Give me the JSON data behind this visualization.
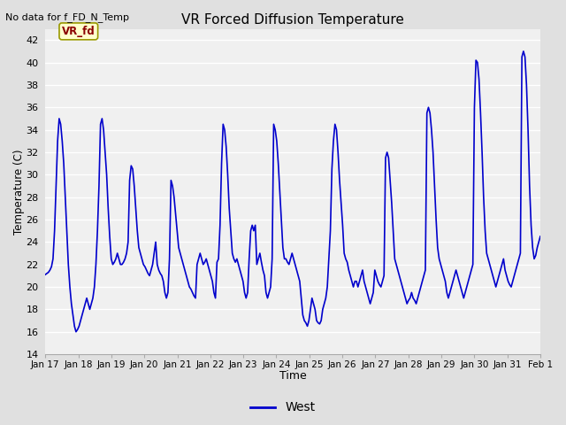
{
  "title": "VR Forced Diffusion Temperature",
  "xlabel": "Time",
  "ylabel": "Temperature (C)",
  "no_data_label": "No data for f_FD_N_Temp",
  "vr_fd_label": "VR_fd",
  "legend_label": "West",
  "line_color": "#0000cc",
  "ylim": [
    14,
    43
  ],
  "yticks": [
    14,
    16,
    18,
    20,
    22,
    24,
    26,
    28,
    30,
    32,
    34,
    36,
    38,
    40,
    42
  ],
  "fig_bg_color": "#e0e0e0",
  "plot_bg_color": "#f0f0f0",
  "grid_color": "#ffffff",
  "xtick_labels": [
    "Jan 17",
    "Jan 18",
    "Jan 19",
    "Jan 20",
    "Jan 21",
    "Jan 22",
    "Jan 23",
    "Jan 24",
    "Jan 25",
    "Jan 26",
    "Jan 27",
    "Jan 28",
    "Jan 29",
    "Jan 30",
    "Jan 31",
    "Feb 1"
  ],
  "temperature_data": [
    21.1,
    21.2,
    21.3,
    21.5,
    21.8,
    22.5,
    25.0,
    29.0,
    33.0,
    35.0,
    34.5,
    33.0,
    31.0,
    28.0,
    25.0,
    22.0,
    20.0,
    18.5,
    17.5,
    16.5,
    16.0,
    16.2,
    16.5,
    17.0,
    17.5,
    18.0,
    18.5,
    19.0,
    18.5,
    18.0,
    18.5,
    19.0,
    20.0,
    22.0,
    25.0,
    29.0,
    34.5,
    35.0,
    34.0,
    32.0,
    30.0,
    27.0,
    24.5,
    22.5,
    22.0,
    22.2,
    22.5,
    23.0,
    22.5,
    22.0,
    22.0,
    22.2,
    22.5,
    23.0,
    24.0,
    29.5,
    30.8,
    30.5,
    29.0,
    27.0,
    25.0,
    23.5,
    23.0,
    22.5,
    22.0,
    21.8,
    21.5,
    21.2,
    21.0,
    21.5,
    22.0,
    23.0,
    24.0,
    22.0,
    21.5,
    21.2,
    21.0,
    20.5,
    19.5,
    19.0,
    19.5,
    22.5,
    29.5,
    29.0,
    28.0,
    26.5,
    25.0,
    23.5,
    23.0,
    22.5,
    22.0,
    21.5,
    21.0,
    20.5,
    20.0,
    19.8,
    19.5,
    19.2,
    19.0,
    22.0,
    22.5,
    23.0,
    22.5,
    22.0,
    22.2,
    22.5,
    22.0,
    21.5,
    21.0,
    20.5,
    19.5,
    19.0,
    22.2,
    22.5,
    25.5,
    31.0,
    34.5,
    34.0,
    32.5,
    30.0,
    27.0,
    25.0,
    23.0,
    22.5,
    22.2,
    22.5,
    22.0,
    21.5,
    21.0,
    20.5,
    19.5,
    19.0,
    19.5,
    22.5,
    25.0,
    25.5,
    25.0,
    25.5,
    22.0,
    22.5,
    23.0,
    22.2,
    21.5,
    21.0,
    19.5,
    19.0,
    19.5,
    20.0,
    22.5,
    34.5,
    34.0,
    33.0,
    31.0,
    28.5,
    26.0,
    23.5,
    22.5,
    22.5,
    22.2,
    22.0,
    22.5,
    23.0,
    22.5,
    22.0,
    21.5,
    21.0,
    20.5,
    19.0,
    17.5,
    17.0,
    16.8,
    16.5,
    17.0,
    18.0,
    19.0,
    18.5,
    18.0,
    17.0,
    16.8,
    16.7,
    17.0,
    18.0,
    18.5,
    19.0,
    20.0,
    22.5,
    25.0,
    30.5,
    33.0,
    34.5,
    34.0,
    32.0,
    29.5,
    27.5,
    25.5,
    23.0,
    22.5,
    22.2,
    21.5,
    21.0,
    20.5,
    20.0,
    20.5,
    20.5,
    20.0,
    20.5,
    21.0,
    21.5,
    20.5,
    20.0,
    19.5,
    19.0,
    18.5,
    19.0,
    19.5,
    21.5,
    21.0,
    20.5,
    20.2,
    20.0,
    20.5,
    21.0,
    31.5,
    32.0,
    31.5,
    29.5,
    27.5,
    25.0,
    22.5,
    22.0,
    21.5,
    21.0,
    20.5,
    20.0,
    19.5,
    19.0,
    18.5,
    18.8,
    19.0,
    19.5,
    19.0,
    18.8,
    18.5,
    19.0,
    19.5,
    20.0,
    20.5,
    21.0,
    21.5,
    35.5,
    36.0,
    35.5,
    34.0,
    32.0,
    29.0,
    26.0,
    23.5,
    22.5,
    22.0,
    21.5,
    21.0,
    20.5,
    19.5,
    19.0,
    19.5,
    20.0,
    20.5,
    21.0,
    21.5,
    21.0,
    20.5,
    20.0,
    19.5,
    19.0,
    19.5,
    20.0,
    20.5,
    21.0,
    21.5,
    22.0,
    36.0,
    40.2,
    40.0,
    38.5,
    35.5,
    32.0,
    28.0,
    25.0,
    23.0,
    22.5,
    22.0,
    21.5,
    21.0,
    20.5,
    20.0,
    20.5,
    21.0,
    21.5,
    22.0,
    22.5,
    21.5,
    21.0,
    20.5,
    20.2,
    20.0,
    20.5,
    21.0,
    21.5,
    22.0,
    22.5,
    23.0,
    40.5,
    41.0,
    40.5,
    38.0,
    34.0,
    29.0,
    25.5,
    23.5,
    22.5,
    22.8,
    23.5,
    24.0,
    24.5
  ]
}
